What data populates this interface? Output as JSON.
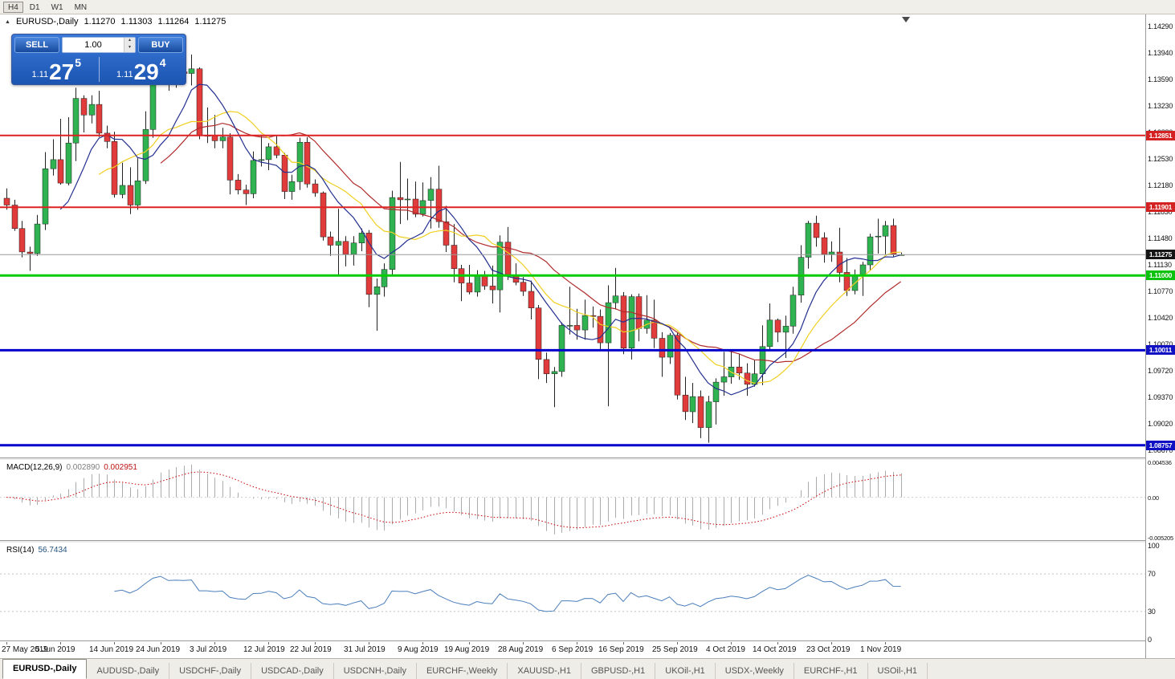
{
  "toolbar": {
    "period_buttons": [
      {
        "label": "H4",
        "active": true
      },
      {
        "label": "D1",
        "active": false
      },
      {
        "label": "W1",
        "active": false
      },
      {
        "label": "MN",
        "active": false
      }
    ]
  },
  "icons": {
    "collapse_arrow": "▲",
    "spinner_up": "▴",
    "spinner_down": "▾",
    "shift_marker": "▼"
  },
  "symbol_header": {
    "title": "EURUSD-,Daily",
    "open": "1.11270",
    "high": "1.11303",
    "low": "1.11264",
    "close": "1.11275"
  },
  "one_click": {
    "sell_label": "SELL",
    "buy_label": "BUY",
    "volume": "1.00",
    "sell_price": {
      "small": "1.11",
      "big": "27",
      "sup": "5"
    },
    "buy_price": {
      "small": "1.11",
      "big": "29",
      "sup": "4"
    }
  },
  "price_axis": {
    "top": 1.1429,
    "step": 0.0035,
    "ticks": [
      "1.14290",
      "1.13940",
      "1.13590",
      "1.13230",
      "1.12880",
      "1.12530",
      "1.12180",
      "1.11830",
      "1.11480",
      "1.11130",
      "1.10770",
      "1.10420",
      "1.10070",
      "1.09720",
      "1.09370",
      "1.09020",
      "1.08670"
    ]
  },
  "price_tags": [
    {
      "text": "1.12851",
      "price": 1.12851,
      "bg": "#d42222",
      "fg": "#ffffff"
    },
    {
      "text": "1.11901",
      "price": 1.11901,
      "bg": "#d42222",
      "fg": "#ffffff"
    },
    {
      "text": "1.11275",
      "price": 1.11275,
      "bg": "#151515",
      "fg": "#ffffff"
    },
    {
      "text": "1.11000",
      "price": 1.11,
      "bg": "#0cc20c",
      "fg": "#ffffff"
    },
    {
      "text": "1.10011",
      "price": 1.10011,
      "bg": "#1111c4",
      "fg": "#ffffff"
    },
    {
      "text": "1.08757",
      "price": 1.08757,
      "bg": "#1111c4",
      "fg": "#ffffff"
    }
  ],
  "hlines": [
    {
      "price": 1.12851,
      "color": "#dd2222",
      "width": 2
    },
    {
      "price": 1.11901,
      "color": "#dd2222",
      "width": 2
    },
    {
      "price": 1.11,
      "color": "#00cc00",
      "width": 3
    },
    {
      "price": 1.10011,
      "color": "#0000cc",
      "width": 3
    },
    {
      "price": 1.08757,
      "color": "#0000cc",
      "width": 3
    }
  ],
  "current_price": {
    "value": 1.11275,
    "line_color": "#9a9a9a"
  },
  "indicators": {
    "macd": {
      "label": "MACD(12,26,9)",
      "value_main": "0.002890",
      "value_signal": "0.002951",
      "fast": 12,
      "slow": 26,
      "signal": 9,
      "axis_labels": [
        "0.004536",
        "0.00",
        "-0.005205"
      ],
      "hist_color": "#ababab",
      "signal_color": "#cc0000"
    },
    "rsi": {
      "label": "RSI(14)",
      "value": "56.7434",
      "period": 14,
      "levels": [
        70,
        30
      ],
      "axis_labels": [
        "100",
        "70",
        "30",
        "0"
      ],
      "line_color": "#4a7ebb",
      "level_color": "#c0c0c0"
    }
  },
  "chart_data": {
    "type": "candlestick",
    "symbol": "EURUSD-",
    "timeframe": "Daily",
    "title": "EURUSD-,Daily",
    "y_range": [
      1.0862,
      1.1445
    ],
    "x_labels": [
      "27 May 2019",
      "5 Jun 2019",
      "14 Jun 2019",
      "24 Jun 2019",
      "3 Jul 2019",
      "12 Jul 2019",
      "22 Jul 2019",
      "31 Jul 2019",
      "9 Aug 2019",
      "19 Aug 2019",
      "28 Aug 2019",
      "6 Sep 2019",
      "16 Sep 2019",
      "25 Sep 2019",
      "4 Oct 2019",
      "14 Oct 2019",
      "23 Oct 2019",
      "1 Nov 2019"
    ],
    "x_label_indices": [
      0,
      7,
      14,
      20,
      27,
      34,
      40,
      47,
      54,
      60,
      67,
      74,
      80,
      87,
      94,
      100,
      107,
      114
    ],
    "bull_color": "#2fb351",
    "bear_color": "#e23b3b",
    "wick_color": "#222222",
    "moving_averages": [
      {
        "type": "sma",
        "period": 21,
        "color": "#b02c2c"
      },
      {
        "type": "sma",
        "period": 13,
        "color": "#f0cf20"
      },
      {
        "type": "sma",
        "period": 8,
        "color": "#23308f"
      }
    ],
    "candles": [
      [
        1.1202,
        1.1215,
        1.1187,
        1.1193
      ],
      [
        1.1193,
        1.12,
        1.1159,
        1.1162
      ],
      [
        1.1162,
        1.1172,
        1.1124,
        1.1131
      ],
      [
        1.1131,
        1.1138,
        1.1106,
        1.1129
      ],
      [
        1.1129,
        1.118,
        1.1126,
        1.1168
      ],
      [
        1.1168,
        1.1263,
        1.116,
        1.1241
      ],
      [
        1.1241,
        1.128,
        1.1232,
        1.1253
      ],
      [
        1.1253,
        1.1307,
        1.122,
        1.1222
      ],
      [
        1.1222,
        1.1309,
        1.1219,
        1.1275
      ],
      [
        1.1275,
        1.1348,
        1.1251,
        1.1334
      ],
      [
        1.1334,
        1.1338,
        1.1289,
        1.1312
      ],
      [
        1.1312,
        1.1338,
        1.1301,
        1.1326
      ],
      [
        1.1326,
        1.1344,
        1.1283,
        1.1288
      ],
      [
        1.1288,
        1.1298,
        1.1268,
        1.1277
      ],
      [
        1.1277,
        1.129,
        1.1203,
        1.1207
      ],
      [
        1.1207,
        1.1249,
        1.1202,
        1.1219
      ],
      [
        1.1219,
        1.1243,
        1.1181,
        1.1193
      ],
      [
        1.1193,
        1.1255,
        1.1187,
        1.1225
      ],
      [
        1.1225,
        1.1317,
        1.1221,
        1.1293
      ],
      [
        1.1293,
        1.1378,
        1.1282,
        1.1369
      ],
      [
        1.1369,
        1.1406,
        1.1362,
        1.1399
      ],
      [
        1.1399,
        1.1412,
        1.1344,
        1.1365
      ],
      [
        1.1365,
        1.139,
        1.1348,
        1.1369
      ],
      [
        1.1369,
        1.1391,
        1.136,
        1.1367
      ],
      [
        1.1367,
        1.1392,
        1.1351,
        1.1373
      ],
      [
        1.1373,
        1.1375,
        1.128,
        1.1285
      ],
      [
        1.1285,
        1.1322,
        1.1275,
        1.1285
      ],
      [
        1.1285,
        1.1312,
        1.1268,
        1.1278
      ],
      [
        1.1278,
        1.1295,
        1.1268,
        1.1283
      ],
      [
        1.1283,
        1.1288,
        1.1207,
        1.1226
      ],
      [
        1.1226,
        1.1234,
        1.1207,
        1.1213
      ],
      [
        1.1213,
        1.122,
        1.1193,
        1.1208
      ],
      [
        1.1208,
        1.1264,
        1.1202,
        1.1252
      ],
      [
        1.1252,
        1.1286,
        1.1244,
        1.1253
      ],
      [
        1.1253,
        1.1275,
        1.1239,
        1.127
      ],
      [
        1.127,
        1.1285,
        1.1255,
        1.1259
      ],
      [
        1.1259,
        1.1262,
        1.1201,
        1.1211
      ],
      [
        1.1211,
        1.1233,
        1.12,
        1.1224
      ],
      [
        1.1224,
        1.1282,
        1.1213,
        1.1276
      ],
      [
        1.1276,
        1.1283,
        1.1216,
        1.1221
      ],
      [
        1.1221,
        1.1227,
        1.1204,
        1.1209
      ],
      [
        1.1209,
        1.1211,
        1.1146,
        1.1151
      ],
      [
        1.1151,
        1.1158,
        1.1126,
        1.114
      ],
      [
        1.114,
        1.1188,
        1.1101,
        1.1145
      ],
      [
        1.1145,
        1.1152,
        1.1112,
        1.1128
      ],
      [
        1.1128,
        1.1152,
        1.1113,
        1.1143
      ],
      [
        1.1143,
        1.1162,
        1.1132,
        1.1156
      ],
      [
        1.1156,
        1.116,
        1.1058,
        1.1075
      ],
      [
        1.1075,
        1.1096,
        1.1027,
        1.1085
      ],
      [
        1.1085,
        1.1116,
        1.1072,
        1.1108
      ],
      [
        1.1108,
        1.1212,
        1.1101,
        1.1203
      ],
      [
        1.1203,
        1.125,
        1.1168,
        1.12
      ],
      [
        1.12,
        1.1228,
        1.1173,
        1.1201
      ],
      [
        1.1201,
        1.1224,
        1.1177,
        1.1181
      ],
      [
        1.1181,
        1.1223,
        1.1178,
        1.1199
      ],
      [
        1.1199,
        1.123,
        1.1162,
        1.1214
      ],
      [
        1.1214,
        1.1245,
        1.1163,
        1.1171
      ],
      [
        1.1171,
        1.1192,
        1.1131,
        1.114
      ],
      [
        1.114,
        1.1168,
        1.1091,
        1.1109
      ],
      [
        1.1109,
        1.1114,
        1.1066,
        1.109
      ],
      [
        1.109,
        1.1114,
        1.1075,
        1.1078
      ],
      [
        1.1078,
        1.1107,
        1.1072,
        1.11
      ],
      [
        1.11,
        1.1106,
        1.1081,
        1.1086
      ],
      [
        1.1086,
        1.1113,
        1.1063,
        1.1081
      ],
      [
        1.1081,
        1.1153,
        1.1051,
        1.1144
      ],
      [
        1.1144,
        1.1164,
        1.1094,
        1.1101
      ],
      [
        1.1101,
        1.1116,
        1.1087,
        1.1091
      ],
      [
        1.1091,
        1.1098,
        1.1073,
        1.1079
      ],
      [
        1.1079,
        1.1093,
        1.1042,
        1.1057
      ],
      [
        1.1057,
        1.1061,
        1.0963,
        1.0989
      ],
      [
        1.0989,
        1.0998,
        1.0958,
        1.097
      ],
      [
        1.097,
        1.0979,
        1.0926,
        1.0973
      ],
      [
        1.0973,
        1.1038,
        1.0966,
        1.1034
      ],
      [
        1.1034,
        1.1085,
        1.1022,
        1.1034
      ],
      [
        1.1034,
        1.1056,
        1.1015,
        1.1028
      ],
      [
        1.1028,
        1.1068,
        1.1015,
        1.1047
      ],
      [
        1.1047,
        1.1059,
        1.1031,
        1.1046
      ],
      [
        1.1046,
        1.1055,
        1.1002,
        1.1011
      ],
      [
        1.1011,
        1.1087,
        1.0927,
        1.1064
      ],
      [
        1.1064,
        1.111,
        1.1055,
        1.1073
      ],
      [
        1.1073,
        1.1078,
        1.0996,
        1.1004
      ],
      [
        1.1004,
        1.1075,
        1.0989,
        1.1072
      ],
      [
        1.1072,
        1.1076,
        1.1013,
        1.103
      ],
      [
        1.103,
        1.1074,
        1.1023,
        1.1041
      ],
      [
        1.1041,
        1.1068,
        1.1004,
        1.1017
      ],
      [
        1.1017,
        1.1025,
        1.0966,
        1.0992
      ],
      [
        1.0992,
        1.1024,
        1.0983,
        1.1021
      ],
      [
        1.1021,
        1.1024,
        1.0936,
        1.0942
      ],
      [
        1.0942,
        1.0966,
        1.0909,
        1.092
      ],
      [
        1.092,
        1.0958,
        1.0905,
        1.094
      ],
      [
        1.094,
        1.0948,
        1.0885,
        1.0899
      ],
      [
        1.0899,
        1.0941,
        1.0879,
        1.0933
      ],
      [
        1.0933,
        1.0964,
        1.0903,
        1.0959
      ],
      [
        1.0959,
        1.0999,
        1.0941,
        1.0966
      ],
      [
        1.0966,
        1.0999,
        1.0957,
        1.0979
      ],
      [
        1.0979,
        1.0996,
        1.0962,
        1.0971
      ],
      [
        1.0971,
        1.0984,
        1.0941,
        1.0956
      ],
      [
        1.0956,
        1.0988,
        1.0953,
        1.097
      ],
      [
        1.097,
        1.1034,
        1.0955,
        1.1006
      ],
      [
        1.1006,
        1.1063,
        1.1002,
        1.1041
      ],
      [
        1.1041,
        1.1043,
        1.1012,
        1.1025
      ],
      [
        1.1025,
        1.1047,
        1.0991,
        1.1033
      ],
      [
        1.1033,
        1.1085,
        1.1023,
        1.1074
      ],
      [
        1.1074,
        1.114,
        1.1064,
        1.1124
      ],
      [
        1.1124,
        1.1172,
        1.1109,
        1.1169
      ],
      [
        1.1169,
        1.1179,
        1.1138,
        1.115
      ],
      [
        1.115,
        1.1157,
        1.1117,
        1.1128
      ],
      [
        1.1128,
        1.1145,
        1.1118,
        1.1131
      ],
      [
        1.1131,
        1.1163,
        1.1091,
        1.1104
      ],
      [
        1.1104,
        1.1123,
        1.1073,
        1.108
      ],
      [
        1.108,
        1.1108,
        1.1075,
        1.1099
      ],
      [
        1.1099,
        1.1118,
        1.1073,
        1.1114
      ],
      [
        1.1114,
        1.1155,
        1.1106,
        1.1151
      ],
      [
        1.1151,
        1.1175,
        1.1129,
        1.1152
      ],
      [
        1.1152,
        1.1172,
        1.1128,
        1.1166
      ],
      [
        1.1166,
        1.1175,
        1.1125,
        1.1128
      ],
      [
        1.1127,
        1.11303,
        1.11264,
        1.11275
      ]
    ]
  },
  "tabs": [
    {
      "label": "EURUSD-,Daily",
      "active": true
    },
    {
      "label": "AUDUSD-,Daily",
      "active": false
    },
    {
      "label": "USDCHF-,Daily",
      "active": false
    },
    {
      "label": "USDCAD-,Daily",
      "active": false
    },
    {
      "label": "USDCNH-,Daily",
      "active": false
    },
    {
      "label": "EURCHF-,Weekly",
      "active": false
    },
    {
      "label": "XAUUSD-,H1",
      "active": false
    },
    {
      "label": "GBPUSD-,H1",
      "active": false
    },
    {
      "label": "UKOil-,H1",
      "active": false
    },
    {
      "label": "USDX-,Weekly",
      "active": false
    },
    {
      "label": "EURCHF-,H1",
      "active": false
    },
    {
      "label": "USOil-,H1",
      "active": false
    }
  ]
}
